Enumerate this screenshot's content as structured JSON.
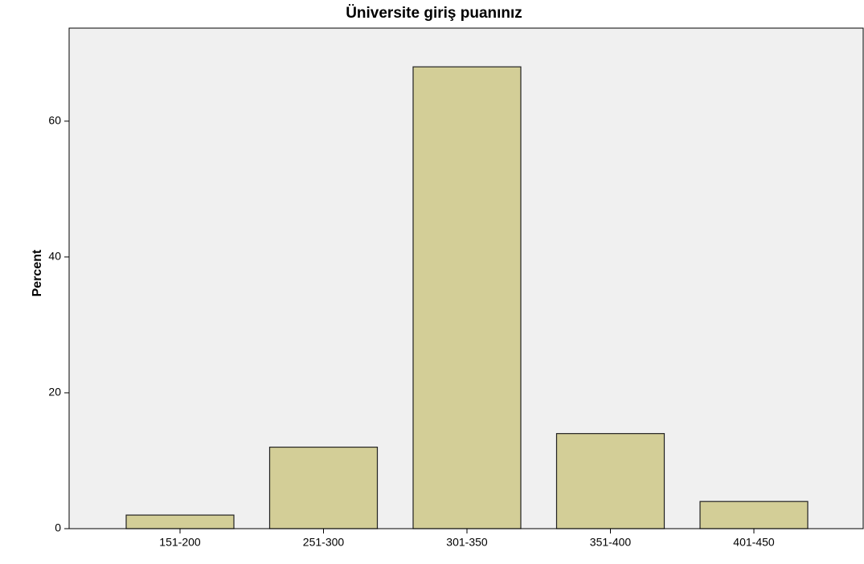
{
  "chart_data": {
    "type": "bar",
    "title": "Üniversite giriş puanınız",
    "y_label": "Percent",
    "categories": [
      "151-200",
      "251-300",
      "301-350",
      "351-400",
      "401-450"
    ],
    "values": [
      2,
      12,
      68,
      14,
      4
    ],
    "color": "#d3ce97",
    "ylim": [
      0,
      73.7
    ],
    "yticks": [
      0,
      20,
      40,
      60
    ],
    "grid": false
  }
}
